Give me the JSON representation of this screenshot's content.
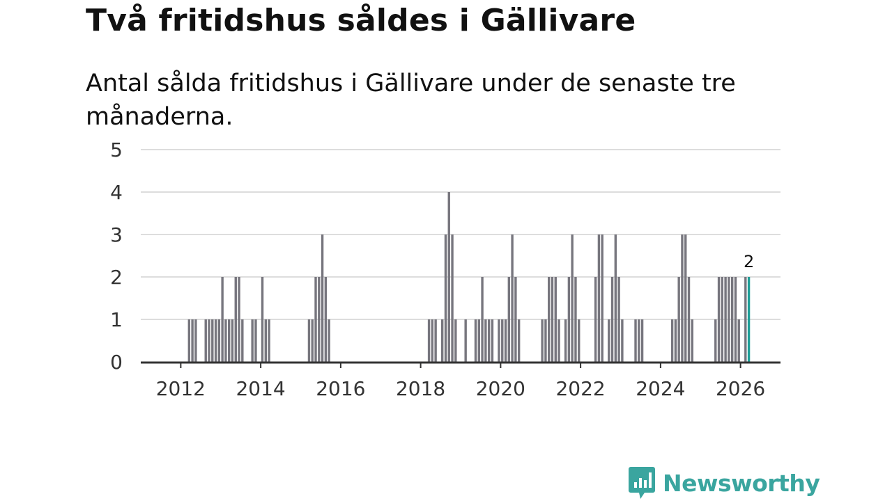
{
  "title": "Två fritidshus såldes i Gällivare",
  "subtitle": "Antal sålda fritidshus i Gällivare under de senaste tre månaderna.",
  "logo": {
    "icon": "chart-speech-bubble-icon",
    "text": "Newsworthy"
  },
  "colors": {
    "bar": "#77767e",
    "highlight": "#1f9e98",
    "grid": "#dddddd",
    "axis": "#333333",
    "brand": "#3aa59f"
  },
  "chart_data": {
    "type": "bar",
    "xlabel": "",
    "ylabel": "",
    "ylim": [
      0,
      5
    ],
    "yticks": [
      "0",
      "1",
      "2",
      "3",
      "4",
      "5"
    ],
    "xticks": [
      "2012",
      "2014",
      "2016",
      "2018",
      "2020",
      "2022",
      "2024",
      "2026"
    ],
    "grid": true,
    "x_start": "2011-01",
    "x_end": "2026-12",
    "series": [
      {
        "data": [
          {
            "x": "2012-03",
            "y": 1
          },
          {
            "x": "2012-04",
            "y": 1
          },
          {
            "x": "2012-05",
            "y": 1
          },
          {
            "x": "2012-08",
            "y": 1
          },
          {
            "x": "2012-09",
            "y": 1
          },
          {
            "x": "2012-10",
            "y": 1
          },
          {
            "x": "2012-11",
            "y": 1
          },
          {
            "x": "2012-12",
            "y": 1
          },
          {
            "x": "2013-01",
            "y": 2
          },
          {
            "x": "2013-02",
            "y": 1
          },
          {
            "x": "2013-03",
            "y": 1
          },
          {
            "x": "2013-04",
            "y": 1
          },
          {
            "x": "2013-05",
            "y": 2
          },
          {
            "x": "2013-06",
            "y": 2
          },
          {
            "x": "2013-07",
            "y": 1
          },
          {
            "x": "2013-10",
            "y": 1
          },
          {
            "x": "2013-11",
            "y": 1
          },
          {
            "x": "2014-01",
            "y": 2
          },
          {
            "x": "2014-02",
            "y": 1
          },
          {
            "x": "2014-03",
            "y": 1
          },
          {
            "x": "2015-03",
            "y": 1
          },
          {
            "x": "2015-04",
            "y": 1
          },
          {
            "x": "2015-05",
            "y": 2
          },
          {
            "x": "2015-06",
            "y": 2
          },
          {
            "x": "2015-07",
            "y": 3
          },
          {
            "x": "2015-08",
            "y": 2
          },
          {
            "x": "2015-09",
            "y": 1
          },
          {
            "x": "2018-03",
            "y": 1
          },
          {
            "x": "2018-04",
            "y": 1
          },
          {
            "x": "2018-05",
            "y": 1
          },
          {
            "x": "2018-07",
            "y": 1
          },
          {
            "x": "2018-08",
            "y": 3
          },
          {
            "x": "2018-09",
            "y": 4
          },
          {
            "x": "2018-10",
            "y": 3
          },
          {
            "x": "2018-11",
            "y": 1
          },
          {
            "x": "2019-02",
            "y": 1
          },
          {
            "x": "2019-05",
            "y": 1
          },
          {
            "x": "2019-06",
            "y": 1
          },
          {
            "x": "2019-07",
            "y": 2
          },
          {
            "x": "2019-08",
            "y": 1
          },
          {
            "x": "2019-09",
            "y": 1
          },
          {
            "x": "2019-10",
            "y": 1
          },
          {
            "x": "2019-12",
            "y": 1
          },
          {
            "x": "2020-01",
            "y": 1
          },
          {
            "x": "2020-02",
            "y": 1
          },
          {
            "x": "2020-03",
            "y": 2
          },
          {
            "x": "2020-04",
            "y": 3
          },
          {
            "x": "2020-05",
            "y": 2
          },
          {
            "x": "2020-06",
            "y": 1
          },
          {
            "x": "2021-01",
            "y": 1
          },
          {
            "x": "2021-02",
            "y": 1
          },
          {
            "x": "2021-03",
            "y": 2
          },
          {
            "x": "2021-04",
            "y": 2
          },
          {
            "x": "2021-05",
            "y": 2
          },
          {
            "x": "2021-06",
            "y": 1
          },
          {
            "x": "2021-08",
            "y": 1
          },
          {
            "x": "2021-09",
            "y": 2
          },
          {
            "x": "2021-10",
            "y": 3
          },
          {
            "x": "2021-11",
            "y": 2
          },
          {
            "x": "2021-12",
            "y": 1
          },
          {
            "x": "2022-05",
            "y": 2
          },
          {
            "x": "2022-06",
            "y": 3
          },
          {
            "x": "2022-07",
            "y": 3
          },
          {
            "x": "2022-09",
            "y": 1
          },
          {
            "x": "2022-10",
            "y": 2
          },
          {
            "x": "2022-11",
            "y": 3
          },
          {
            "x": "2022-12",
            "y": 2
          },
          {
            "x": "2023-01",
            "y": 1
          },
          {
            "x": "2023-05",
            "y": 1
          },
          {
            "x": "2023-06",
            "y": 1
          },
          {
            "x": "2023-07",
            "y": 1
          },
          {
            "x": "2024-04",
            "y": 1
          },
          {
            "x": "2024-05",
            "y": 1
          },
          {
            "x": "2024-06",
            "y": 2
          },
          {
            "x": "2024-07",
            "y": 3
          },
          {
            "x": "2024-08",
            "y": 3
          },
          {
            "x": "2024-09",
            "y": 2
          },
          {
            "x": "2024-10",
            "y": 1
          },
          {
            "x": "2025-05",
            "y": 1
          },
          {
            "x": "2025-06",
            "y": 2
          },
          {
            "x": "2025-07",
            "y": 2
          },
          {
            "x": "2025-08",
            "y": 2
          },
          {
            "x": "2025-09",
            "y": 2
          },
          {
            "x": "2025-10",
            "y": 2
          },
          {
            "x": "2025-11",
            "y": 2
          },
          {
            "x": "2025-12",
            "y": 1
          },
          {
            "x": "2026-02",
            "y": 2
          },
          {
            "x": "2026-03",
            "y": 2
          }
        ]
      }
    ],
    "highlight": {
      "x": "2026-03",
      "label": "2"
    }
  }
}
